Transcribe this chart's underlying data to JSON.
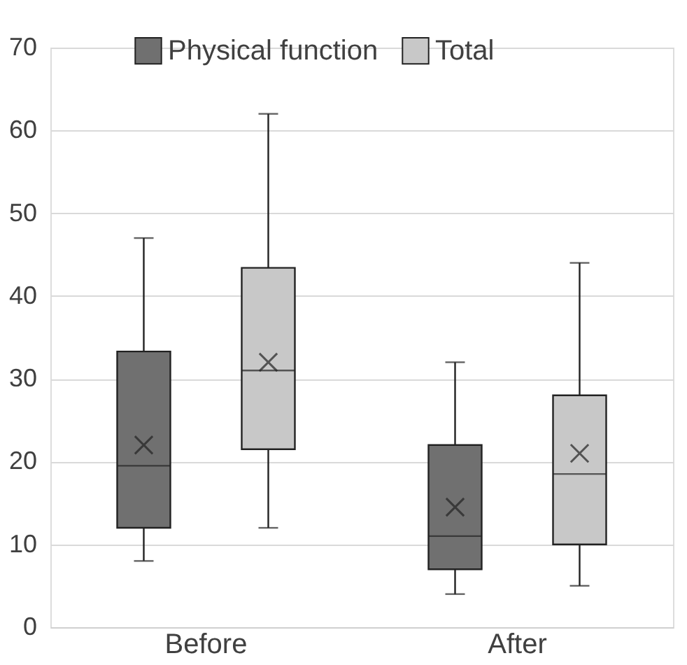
{
  "chart_data": {
    "type": "box",
    "categories": [
      "Before",
      "After"
    ],
    "series": [
      {
        "name": "Physical function",
        "color": "#707070",
        "boxes": [
          {
            "low": 8,
            "q1": 12,
            "median": 19.5,
            "q3": 33.3,
            "high": 47,
            "mean": 22
          },
          {
            "low": 4,
            "q1": 7,
            "median": 11,
            "q3": 22,
            "high": 32,
            "mean": 14.5
          }
        ]
      },
      {
        "name": "Total",
        "color": "#c8c8c8",
        "boxes": [
          {
            "low": 12,
            "q1": 21.5,
            "median": 31,
            "q3": 43.4,
            "high": 62,
            "mean": 32
          },
          {
            "low": 5,
            "q1": 10,
            "median": 18.5,
            "q3": 28,
            "high": 44,
            "mean": 21
          }
        ]
      }
    ],
    "ylim": [
      0,
      70
    ],
    "yticks": [
      0,
      10,
      20,
      30,
      40,
      50,
      60,
      70
    ],
    "grid": "y",
    "legend": "top",
    "marker": "cross"
  }
}
